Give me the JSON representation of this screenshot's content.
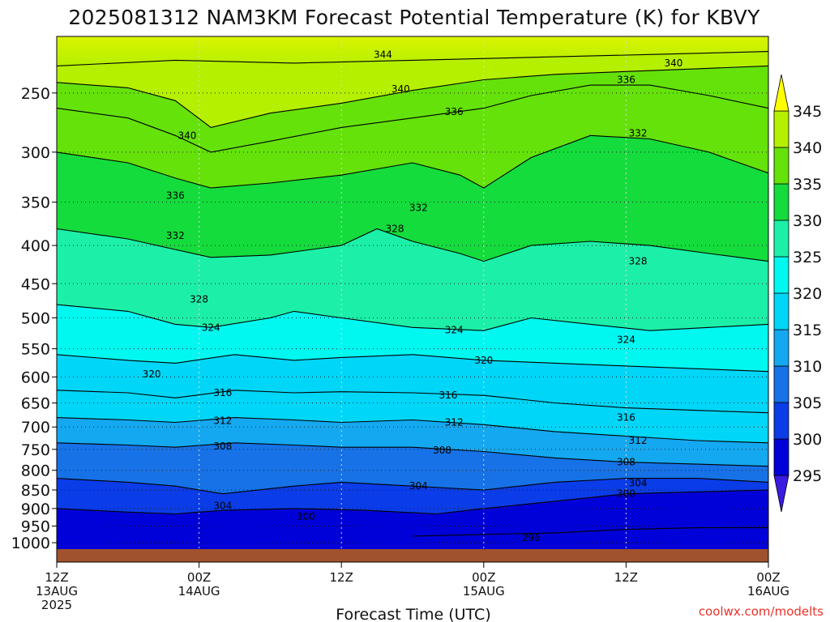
{
  "chart_data": {
    "type": "heatmap",
    "title": "2025081312 NAM3KM Forecast Potential Temperature (K) for KBVY",
    "xlabel": "Forecast Time (UTC)",
    "ylabel": "",
    "credit": "coolwx.com/modelts",
    "y_scale": "log",
    "y_inverted": true,
    "ylim": [
      1020,
      210
    ],
    "y_ticks": [
      250,
      300,
      350,
      400,
      450,
      500,
      550,
      600,
      650,
      700,
      750,
      800,
      850,
      900,
      950,
      1000
    ],
    "x_range_hours": [
      0,
      60
    ],
    "x_ticks": [
      {
        "hour": 0,
        "line1": "12Z",
        "line2": "13AUG",
        "line3": "2025"
      },
      {
        "hour": 12,
        "line1": "00Z",
        "line2": "14AUG",
        "line3": ""
      },
      {
        "hour": 24,
        "line1": "12Z",
        "line2": "",
        "line3": ""
      },
      {
        "hour": 36,
        "line1": "00Z",
        "line2": "15AUG",
        "line3": ""
      },
      {
        "hour": 48,
        "line1": "12Z",
        "line2": "",
        "line3": ""
      },
      {
        "hour": 60,
        "line1": "00Z",
        "line2": "16AUG",
        "line3": ""
      }
    ],
    "grid": true,
    "ground_color": "#a0522d",
    "colorbar": {
      "ticks": [
        295,
        300,
        305,
        310,
        315,
        320,
        325,
        330,
        335,
        340,
        345
      ],
      "bins": [
        {
          "lo": 290,
          "hi": 295,
          "color": "#3a1be0"
        },
        {
          "lo": 295,
          "hi": 300,
          "color": "#0000d8"
        },
        {
          "lo": 300,
          "hi": 305,
          "color": "#0a3ce8"
        },
        {
          "lo": 305,
          "hi": 310,
          "color": "#1672e6"
        },
        {
          "lo": 310,
          "hi": 315,
          "color": "#14a8f0"
        },
        {
          "lo": 315,
          "hi": 320,
          "color": "#00d6f8"
        },
        {
          "lo": 320,
          "hi": 325,
          "color": "#00f8f0"
        },
        {
          "lo": 325,
          "hi": 330,
          "color": "#1cf0a8"
        },
        {
          "lo": 330,
          "hi": 335,
          "color": "#14dc3c"
        },
        {
          "lo": 335,
          "hi": 340,
          "color": "#64e20a"
        },
        {
          "lo": 340,
          "hi": 345,
          "color": "#b4f000"
        },
        {
          "lo": 345,
          "hi": 350,
          "color": "#ffff00"
        }
      ]
    },
    "isentropes": [
      {
        "theta": 344,
        "points": [
          [
            0,
            230
          ],
          [
            10,
            226
          ],
          [
            20,
            228
          ],
          [
            30,
            226
          ],
          [
            40,
            224
          ],
          [
            50,
            222
          ],
          [
            60,
            220
          ]
        ]
      },
      {
        "theta": 340,
        "points": [
          [
            0,
            242
          ],
          [
            6,
            246
          ],
          [
            10,
            256
          ],
          [
            13,
            278
          ],
          [
            18,
            266
          ],
          [
            24,
            258
          ],
          [
            30,
            248
          ],
          [
            36,
            240
          ],
          [
            42,
            236
          ],
          [
            48,
            234
          ],
          [
            54,
            232
          ],
          [
            60,
            230
          ]
        ]
      },
      {
        "theta": 336,
        "points": [
          [
            0,
            262
          ],
          [
            6,
            270
          ],
          [
            10,
            285
          ],
          [
            13,
            300
          ],
          [
            18,
            290
          ],
          [
            24,
            278
          ],
          [
            30,
            270
          ],
          [
            36,
            262
          ],
          [
            40,
            252
          ],
          [
            45,
            244
          ],
          [
            50,
            244
          ],
          [
            55,
            252
          ],
          [
            60,
            262
          ]
        ]
      },
      {
        "theta": 332,
        "points": [
          [
            0,
            300
          ],
          [
            6,
            310
          ],
          [
            10,
            325
          ],
          [
            13,
            335
          ],
          [
            18,
            330
          ],
          [
            24,
            322
          ],
          [
            30,
            310
          ],
          [
            34,
            322
          ],
          [
            36,
            335
          ],
          [
            40,
            305
          ],
          [
            45,
            285
          ],
          [
            50,
            288
          ],
          [
            55,
            300
          ],
          [
            60,
            320
          ]
        ]
      },
      {
        "theta": 328,
        "points": [
          [
            0,
            380
          ],
          [
            6,
            392
          ],
          [
            10,
            405
          ],
          [
            13,
            415
          ],
          [
            18,
            412
          ],
          [
            24,
            400
          ],
          [
            27,
            380
          ],
          [
            30,
            395
          ],
          [
            34,
            410
          ],
          [
            36,
            420
          ],
          [
            40,
            400
          ],
          [
            45,
            395
          ],
          [
            50,
            400
          ],
          [
            55,
            410
          ],
          [
            60,
            420
          ]
        ]
      },
      {
        "theta": 324,
        "points": [
          [
            0,
            480
          ],
          [
            6,
            490
          ],
          [
            10,
            510
          ],
          [
            13,
            515
          ],
          [
            18,
            500
          ],
          [
            20,
            490
          ],
          [
            24,
            500
          ],
          [
            30,
            515
          ],
          [
            36,
            520
          ],
          [
            40,
            500
          ],
          [
            45,
            510
          ],
          [
            50,
            520
          ],
          [
            55,
            515
          ],
          [
            60,
            510
          ]
        ]
      },
      {
        "theta": 320,
        "points": [
          [
            0,
            560
          ],
          [
            6,
            570
          ],
          [
            10,
            575
          ],
          [
            15,
            560
          ],
          [
            20,
            570
          ],
          [
            24,
            565
          ],
          [
            30,
            560
          ],
          [
            36,
            570
          ],
          [
            42,
            575
          ],
          [
            48,
            580
          ],
          [
            54,
            585
          ],
          [
            60,
            590
          ]
        ]
      },
      {
        "theta": 316,
        "points": [
          [
            0,
            625
          ],
          [
            6,
            630
          ],
          [
            10,
            640
          ],
          [
            15,
            625
          ],
          [
            20,
            630
          ],
          [
            24,
            628
          ],
          [
            30,
            630
          ],
          [
            36,
            635
          ],
          [
            42,
            650
          ],
          [
            48,
            660
          ],
          [
            54,
            665
          ],
          [
            60,
            670
          ]
        ]
      },
      {
        "theta": 312,
        "points": [
          [
            0,
            680
          ],
          [
            6,
            685
          ],
          [
            10,
            690
          ],
          [
            15,
            680
          ],
          [
            20,
            685
          ],
          [
            24,
            690
          ],
          [
            30,
            685
          ],
          [
            36,
            695
          ],
          [
            42,
            710
          ],
          [
            48,
            720
          ],
          [
            54,
            730
          ],
          [
            60,
            735
          ]
        ]
      },
      {
        "theta": 308,
        "points": [
          [
            0,
            735
          ],
          [
            6,
            740
          ],
          [
            10,
            745
          ],
          [
            15,
            735
          ],
          [
            20,
            740
          ],
          [
            24,
            745
          ],
          [
            30,
            745
          ],
          [
            36,
            755
          ],
          [
            42,
            770
          ],
          [
            48,
            780
          ],
          [
            54,
            785
          ],
          [
            60,
            790
          ]
        ]
      },
      {
        "theta": 304,
        "points": [
          [
            0,
            820
          ],
          [
            6,
            830
          ],
          [
            10,
            840
          ],
          [
            14,
            860
          ],
          [
            20,
            840
          ],
          [
            24,
            830
          ],
          [
            30,
            840
          ],
          [
            36,
            850
          ],
          [
            42,
            830
          ],
          [
            48,
            820
          ],
          [
            54,
            820
          ],
          [
            60,
            830
          ]
        ]
      },
      {
        "theta": 300,
        "points": [
          [
            0,
            900
          ],
          [
            6,
            910
          ],
          [
            10,
            915
          ],
          [
            14,
            905
          ],
          [
            20,
            900
          ],
          [
            26,
            905
          ],
          [
            32,
            915
          ],
          [
            36,
            900
          ],
          [
            42,
            880
          ],
          [
            48,
            860
          ],
          [
            54,
            855
          ],
          [
            60,
            850
          ]
        ]
      },
      {
        "theta": 296,
        "points": [
          [
            30,
            980
          ],
          [
            36,
            975
          ],
          [
            42,
            970
          ],
          [
            48,
            960
          ],
          [
            54,
            955
          ],
          [
            60,
            955
          ]
        ]
      }
    ],
    "contour_labels": [
      {
        "text": "344",
        "hour": 27.5,
        "p": 222
      },
      {
        "text": "340",
        "hour": 52.0,
        "p": 228
      },
      {
        "text": "336",
        "hour": 48.0,
        "p": 240
      },
      {
        "text": "340",
        "hour": 29.0,
        "p": 247
      },
      {
        "text": "336",
        "hour": 33.5,
        "p": 265
      },
      {
        "text": "332",
        "hour": 49.0,
        "p": 283
      },
      {
        "text": "340",
        "hour": 11.0,
        "p": 285
      },
      {
        "text": "336",
        "hour": 10.0,
        "p": 343
      },
      {
        "text": "332",
        "hour": 30.5,
        "p": 356
      },
      {
        "text": "328",
        "hour": 28.5,
        "p": 380
      },
      {
        "text": "332",
        "hour": 10.0,
        "p": 388
      },
      {
        "text": "328",
        "hour": 49.0,
        "p": 420
      },
      {
        "text": "328",
        "hour": 12.0,
        "p": 472
      },
      {
        "text": "324",
        "hour": 33.5,
        "p": 519
      },
      {
        "text": "324",
        "hour": 13.0,
        "p": 515
      },
      {
        "text": "324",
        "hour": 48.0,
        "p": 535
      },
      {
        "text": "320",
        "hour": 36.0,
        "p": 570
      },
      {
        "text": "320",
        "hour": 8.0,
        "p": 595
      },
      {
        "text": "316",
        "hour": 33.0,
        "p": 635
      },
      {
        "text": "316",
        "hour": 14.0,
        "p": 630
      },
      {
        "text": "316",
        "hour": 48.0,
        "p": 680
      },
      {
        "text": "312",
        "hour": 33.5,
        "p": 690
      },
      {
        "text": "312",
        "hour": 14.0,
        "p": 687
      },
      {
        "text": "312",
        "hour": 49.0,
        "p": 730
      },
      {
        "text": "308",
        "hour": 14.0,
        "p": 743
      },
      {
        "text": "308",
        "hour": 32.5,
        "p": 752
      },
      {
        "text": "308",
        "hour": 48.0,
        "p": 780
      },
      {
        "text": "304",
        "hour": 30.5,
        "p": 840
      },
      {
        "text": "304",
        "hour": 49.0,
        "p": 832
      },
      {
        "text": "300",
        "hour": 48.0,
        "p": 860
      },
      {
        "text": "304",
        "hour": 14.0,
        "p": 893
      },
      {
        "text": "300",
        "hour": 21.0,
        "p": 923
      },
      {
        "text": "296",
        "hour": 40.0,
        "p": 985
      }
    ]
  }
}
